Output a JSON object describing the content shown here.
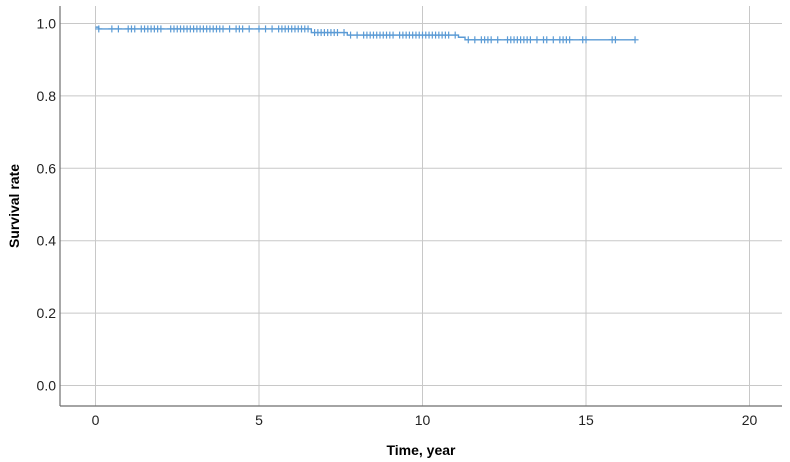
{
  "chart_data": {
    "type": "line",
    "title": "",
    "xlabel": "Time, year",
    "ylabel": "Survival rate",
    "xlim": [
      -2,
      21
    ],
    "ylim": [
      -0.06,
      1.04
    ],
    "xticks": [
      0,
      5,
      10,
      15,
      20
    ],
    "yticks": [
      0.0,
      0.2,
      0.4,
      0.6,
      0.8,
      1.0
    ],
    "xtick_labels": [
      "0",
      "5",
      "10",
      "15",
      "20"
    ],
    "ytick_labels": [
      "0.0",
      "0.2",
      "0.4",
      "0.6",
      "0.8",
      "1.0"
    ],
    "grid": true,
    "colors": {
      "series": "#5b9bd5",
      "grid": "#c8c8c8",
      "axis": "#6e6e6e"
    },
    "series": [
      {
        "steps": [
          {
            "x": 0.0,
            "y": 0.99
          },
          {
            "x": 0.1,
            "y": 0.985
          },
          {
            "x": 6.6,
            "y": 0.975
          },
          {
            "x": 7.7,
            "y": 0.968
          },
          {
            "x": 11.1,
            "y": 0.962
          },
          {
            "x": 11.3,
            "y": 0.955
          }
        ],
        "end_x": 16.5,
        "censored_x": [
          0.1,
          0.5,
          0.7,
          1.0,
          1.1,
          1.2,
          1.4,
          1.5,
          1.6,
          1.7,
          1.8,
          1.9,
          2.0,
          2.3,
          2.4,
          2.5,
          2.6,
          2.7,
          2.8,
          2.9,
          3.0,
          3.1,
          3.2,
          3.3,
          3.4,
          3.5,
          3.6,
          3.7,
          3.8,
          3.9,
          4.1,
          4.3,
          4.4,
          4.5,
          4.7,
          5.0,
          5.2,
          5.4,
          5.6,
          5.7,
          5.8,
          5.9,
          6.0,
          6.1,
          6.2,
          6.3,
          6.4,
          6.5,
          6.7,
          6.8,
          6.9,
          7.0,
          7.1,
          7.2,
          7.3,
          7.4,
          7.6,
          7.8,
          8.0,
          8.2,
          8.3,
          8.4,
          8.5,
          8.6,
          8.7,
          8.8,
          8.9,
          9.0,
          9.1,
          9.3,
          9.4,
          9.5,
          9.6,
          9.7,
          9.8,
          9.9,
          10.0,
          10.1,
          10.2,
          10.3,
          10.4,
          10.5,
          10.6,
          10.7,
          10.8,
          11.0,
          11.4,
          11.6,
          11.8,
          11.9,
          12.0,
          12.1,
          12.3,
          12.6,
          12.7,
          12.8,
          12.9,
          13.0,
          13.1,
          13.2,
          13.3,
          13.5,
          13.7,
          13.8,
          14.0,
          14.2,
          14.3,
          14.4,
          14.5,
          14.9,
          15.0,
          15.8,
          15.9,
          16.5
        ]
      }
    ]
  }
}
